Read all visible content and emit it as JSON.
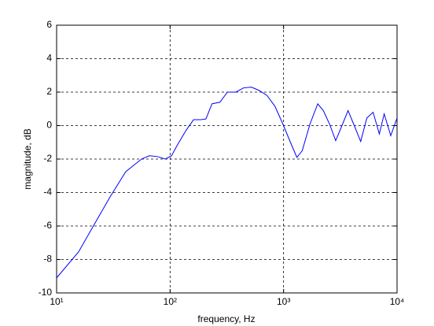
{
  "chart_data": {
    "type": "line",
    "xlabel": "frequency, Hz",
    "ylabel": "magnitude, dB",
    "x": [
      10,
      15.6,
      21.5,
      29.6,
      40.7,
      56,
      65.7,
      77,
      90.9,
      103,
      115,
      139,
      161,
      185,
      207,
      234,
      275,
      320,
      380,
      443,
      520,
      610,
      715,
      840,
      985,
      1150,
      1310,
      1460,
      1710,
      2000,
      2240,
      2540,
      2880,
      3270,
      3700,
      4200,
      4780,
      5420,
      6150,
      6980,
      7700,
      8800,
      10000
    ],
    "values": [
      -9.1,
      -7.55,
      -5.9,
      -4.26,
      -2.75,
      -2.0,
      -1.8,
      -1.85,
      -2.0,
      -1.8,
      -1.2,
      -0.26,
      0.35,
      0.35,
      0.4,
      1.3,
      1.4,
      2.0,
      2.0,
      2.25,
      2.3,
      2.1,
      1.8,
      1.15,
      0.1,
      -1.0,
      -1.9,
      -1.5,
      0.1,
      1.3,
      0.9,
      0.1,
      -0.9,
      0.0,
      0.9,
      0.0,
      -0.95,
      0.45,
      0.8,
      -0.5,
      0.7,
      -0.6,
      0.45
    ],
    "color": "#0000ff",
    "xscale": "log",
    "xlim": [
      10,
      10000
    ],
    "xticks": [
      {
        "value": 10,
        "label": "10¹"
      },
      {
        "value": 100,
        "label": "10²"
      },
      {
        "value": 1000,
        "label": "10³"
      },
      {
        "value": 10000,
        "label": "10⁴"
      }
    ],
    "ylim": [
      -10,
      6
    ],
    "yticks": [
      -10,
      -8,
      -6,
      -4,
      -2,
      0,
      2,
      4,
      6
    ],
    "grid": true
  }
}
